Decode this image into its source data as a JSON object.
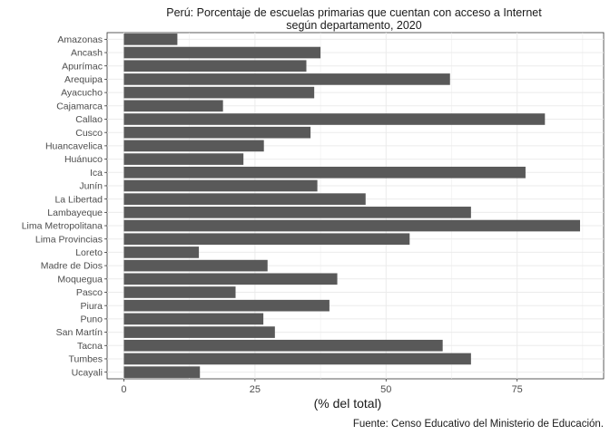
{
  "chart_data": {
    "type": "bar",
    "orientation": "horizontal",
    "title": [
      "Perú: Porcentaje de escuelas primarias que cuentan con acceso a Internet",
      "según departamento, 2020"
    ],
    "xlabel": "(% del total)",
    "ylabel": "",
    "caption": "Fuente: Censo Educativo del Ministerio de Educación.",
    "xlim": [
      0,
      91.5
    ],
    "xticks": [
      0,
      25,
      50,
      75
    ],
    "grid": true,
    "bar_color": "#595959",
    "categories": [
      "Amazonas",
      "Ancash",
      "Apurímac",
      "Arequipa",
      "Ayacucho",
      "Cajamarca",
      "Callao",
      "Cusco",
      "Huancavelica",
      "Huánuco",
      "Ica",
      "Junín",
      "La Libertad",
      "Lambayeque",
      "Lima Metropolitana",
      "Lima Provincias",
      "Loreto",
      "Madre de Dios",
      "Moquegua",
      "Pasco",
      "Piura",
      "Puno",
      "San Martín",
      "Tacna",
      "Tumbes",
      "Ucayali"
    ],
    "values": [
      10.2,
      37.5,
      34.8,
      62.2,
      36.3,
      18.9,
      80.3,
      35.6,
      26.7,
      22.8,
      76.6,
      36.9,
      46.1,
      66.2,
      87.0,
      54.5,
      14.3,
      27.4,
      40.7,
      21.3,
      39.2,
      26.6,
      28.8,
      60.8,
      66.2,
      14.5
    ]
  }
}
